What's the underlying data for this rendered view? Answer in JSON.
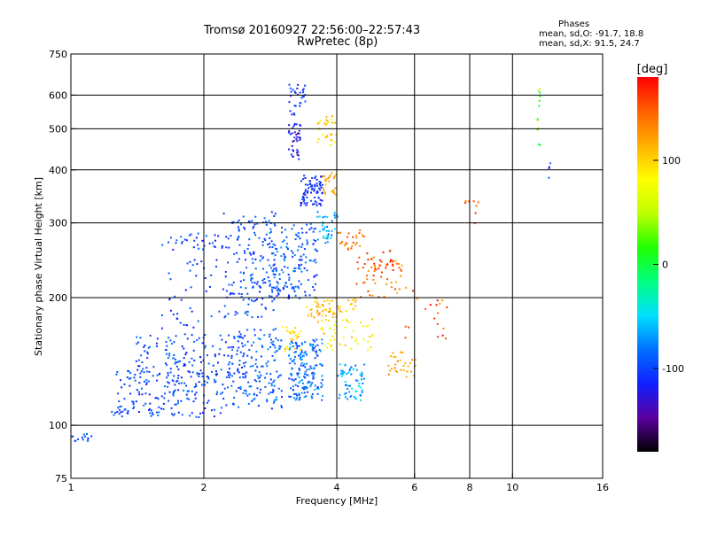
{
  "header": {
    "title": "Tromsø 20160927 22:56:00–22:57:43",
    "subtitle": "RwPretec (8p)",
    "phase_heading": "Phases",
    "phase_o": "mean, sd,O: -91.7, 18.8",
    "phase_x": "mean, sd,X:  91.5, 24.7"
  },
  "chart_data": {
    "type": "scatter",
    "xlabel": "Frequency [MHz]",
    "ylabel": "Stationary phase Virtual Height [km]",
    "x_scale": "log",
    "y_scale": "log",
    "xlim": [
      1,
      16
    ],
    "ylim": [
      75,
      750
    ],
    "x_ticks": [
      1,
      2,
      4,
      6,
      8,
      10,
      16
    ],
    "x_tick_labels": [
      "1",
      "2",
      "4",
      "6",
      "8",
      "10",
      "16"
    ],
    "y_ticks": [
      75,
      100,
      200,
      300,
      400,
      500,
      600,
      750
    ],
    "y_tick_labels": [
      "75",
      "100",
      "200",
      "300",
      "400",
      "500",
      "600",
      "750"
    ],
    "grid_x": [
      2,
      4,
      6,
      8,
      10
    ],
    "grid_y": [
      100,
      200,
      300,
      400,
      500,
      600
    ],
    "colorbar": {
      "label": "[deg]",
      "range": [
        -180,
        180
      ],
      "ticks": [
        100,
        0,
        -100
      ],
      "tick_labels": [
        "100",
        "0",
        "-100"
      ],
      "colors": [
        "#000000",
        "#5a00a0",
        "#1020ff",
        "#0070ff",
        "#00e0ff",
        "#00ff80",
        "#20ff00",
        "#c0ff00",
        "#ffff00",
        "#ffb000",
        "#ff6000",
        "#ff0000"
      ]
    },
    "clusters": [
      {
        "x": [
          1.0,
          1.15
        ],
        "y": [
          92,
          96
        ],
        "phase": [
          -110,
          -80
        ],
        "n": 14
      },
      {
        "x": [
          1.18,
          1.35
        ],
        "y": [
          105,
          110
        ],
        "phase": [
          -110,
          -90
        ],
        "n": 8
      },
      {
        "x": [
          1.25,
          2.3
        ],
        "y": [
          105,
          135
        ],
        "phase": [
          -120,
          -80
        ],
        "n": 180
      },
      {
        "x": [
          1.4,
          2.5
        ],
        "y": [
          130,
          165
        ],
        "phase": [
          -120,
          -80
        ],
        "n": 140
      },
      {
        "x": [
          1.6,
          2.2
        ],
        "y": [
          170,
          250
        ],
        "phase": [
          -120,
          -85
        ],
        "n": 40
      },
      {
        "x": [
          1.6,
          2.3
        ],
        "y": [
          260,
          285
        ],
        "phase": [
          -120,
          -80
        ],
        "n": 35
      },
      {
        "x": [
          2.2,
          2.9
        ],
        "y": [
          180,
          320
        ],
        "phase": [
          -115,
          -80
        ],
        "n": 160
      },
      {
        "x": [
          2.3,
          3.0
        ],
        "y": [
          110,
          170
        ],
        "phase": [
          -110,
          -70
        ],
        "n": 150
      },
      {
        "x": [
          2.8,
          3.6
        ],
        "y": [
          200,
          300
        ],
        "phase": [
          -115,
          -70
        ],
        "n": 160
      },
      {
        "x": [
          3.1,
          3.7
        ],
        "y": [
          115,
          160
        ],
        "phase": [
          -110,
          -60
        ],
        "n": 170
      },
      {
        "x": [
          3.1,
          3.3
        ],
        "y": [
          420,
          520
        ],
        "phase": [
          -140,
          -100
        ],
        "n": 40
      },
      {
        "x": [
          3.1,
          3.4
        ],
        "y": [
          540,
          640
        ],
        "phase": [
          -130,
          -90
        ],
        "n": 30
      },
      {
        "x": [
          3.3,
          3.7
        ],
        "y": [
          330,
          390
        ],
        "phase": [
          -130,
          -90
        ],
        "n": 80
      },
      {
        "x": [
          3.6,
          4.0
        ],
        "y": [
          270,
          320
        ],
        "phase": [
          -90,
          -40
        ],
        "n": 40
      },
      {
        "x": [
          3.6,
          4.0
        ],
        "y": [
          460,
          540
        ],
        "phase": [
          80,
          120
        ],
        "n": 30
      },
      {
        "x": [
          3.7,
          4.0
        ],
        "y": [
          350,
          400
        ],
        "phase": [
          100,
          130
        ],
        "n": 25
      },
      {
        "x": [
          3.0,
          3.3
        ],
        "y": [
          150,
          175
        ],
        "phase": [
          80,
          120
        ],
        "n": 25
      },
      {
        "x": [
          3.4,
          4.4
        ],
        "y": [
          180,
          200
        ],
        "phase": [
          90,
          130
        ],
        "n": 60
      },
      {
        "x": [
          3.6,
          4.8
        ],
        "y": [
          150,
          180
        ],
        "phase": [
          60,
          120
        ],
        "n": 50
      },
      {
        "x": [
          4.0,
          4.6
        ],
        "y": [
          115,
          140
        ],
        "phase": [
          -90,
          -40
        ],
        "n": 60
      },
      {
        "x": [
          4.0,
          4.6
        ],
        "y": [
          260,
          290
        ],
        "phase": [
          120,
          160
        ],
        "n": 25
      },
      {
        "x": [
          4.4,
          5.6
        ],
        "y": [
          200,
          250
        ],
        "phase": [
          110,
          170
        ],
        "n": 50
      },
      {
        "x": [
          4.6,
          5.4
        ],
        "y": [
          230,
          260
        ],
        "phase": [
          150,
          180
        ],
        "n": 20
      },
      {
        "x": [
          5.2,
          6.0
        ],
        "y": [
          130,
          150
        ],
        "phase": [
          110,
          140
        ],
        "n": 30
      },
      {
        "x": [
          5.6,
          7.2
        ],
        "y": [
          160,
          225
        ],
        "phase": [
          120,
          180
        ],
        "n": 20
      },
      {
        "x": [
          7.5,
          8.4
        ],
        "y": [
          300,
          340
        ],
        "phase": [
          130,
          170
        ],
        "n": 8
      },
      {
        "x": [
          11.3,
          11.5
        ],
        "y": [
          460,
          640
        ],
        "phase": [
          -20,
          100
        ],
        "n": 12
      },
      {
        "x": [
          12.0,
          12.2
        ],
        "y": [
          380,
          420
        ],
        "phase": [
          -120,
          -80
        ],
        "n": 4
      }
    ]
  }
}
